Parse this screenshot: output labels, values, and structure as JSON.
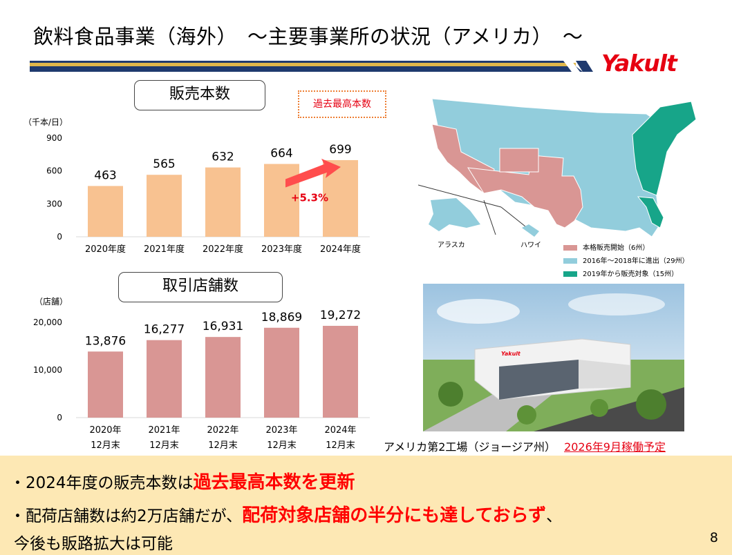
{
  "header": {
    "title": "飲料食品事業（海外）　～主要事業所の状況（アメリカ）　～",
    "logo_text": "Yakult",
    "brand_color": "#e60012"
  },
  "sales_chart": {
    "label": "販売本数",
    "record_badge": "過去最高本数",
    "growth_label": "+5.3%",
    "chart_data": {
      "type": "bar",
      "ylabel": "（千本/日）",
      "categories": [
        "2020年度",
        "2021年度",
        "2022年度",
        "2023年度",
        "2024年度"
      ],
      "values": [
        463,
        565,
        632,
        664,
        699
      ],
      "value_labels": [
        "463",
        "565",
        "632",
        "664",
        "699"
      ],
      "ylim": [
        0,
        900
      ],
      "yticks": [
        0,
        300,
        600,
        900
      ],
      "ytick_labels": [
        "0",
        "300",
        "600",
        "900"
      ],
      "bar_color": "#f8c291"
    }
  },
  "stores_chart": {
    "label": "取引店舗数",
    "chart_data": {
      "type": "bar",
      "ylabel": "（店舗）",
      "categories": [
        [
          "2020年",
          "12月末"
        ],
        [
          "2021年",
          "12月末"
        ],
        [
          "2022年",
          "12月末"
        ],
        [
          "2023年",
          "12月末"
        ],
        [
          "2024年",
          "12月末"
        ]
      ],
      "values": [
        13876,
        16277,
        16931,
        18869,
        19272
      ],
      "value_labels": [
        "13,876",
        "16,277",
        "16,931",
        "18,869",
        "19,272"
      ],
      "ylim": [
        0,
        20000
      ],
      "yticks": [
        0,
        10000,
        20000
      ],
      "ytick_labels": [
        "0",
        "10,000",
        "20,000"
      ],
      "bar_color": "#d99694"
    }
  },
  "map": {
    "labels": {
      "alaska": "アラスカ",
      "hawaii": "ハワイ"
    },
    "legend": [
      {
        "label": "本格販売開始（6州）",
        "color": "#d99694"
      },
      {
        "label": "2016年～2018年に進出（29州）",
        "color": "#92cddc"
      },
      {
        "label": "2019年から販売対象（15州）",
        "color": "#17a589"
      }
    ]
  },
  "photo": {
    "caption": "アメリカ第2工場（ジョージア州）",
    "highlight": "2026年9月稼働予定",
    "sign_text": "Yakult"
  },
  "summary": {
    "line1_prefix": "・2024年度の販売本数は",
    "line1_strong": "過去最高本数を更新",
    "line2_prefix": "・配荷店舗数は約2万店舗だが、",
    "line2_strong": "配荷対象店舗の半分にも達しておらず",
    "line2_suffix": "、",
    "line3": "今後も販路拡大は可能"
  },
  "page_number": "8"
}
